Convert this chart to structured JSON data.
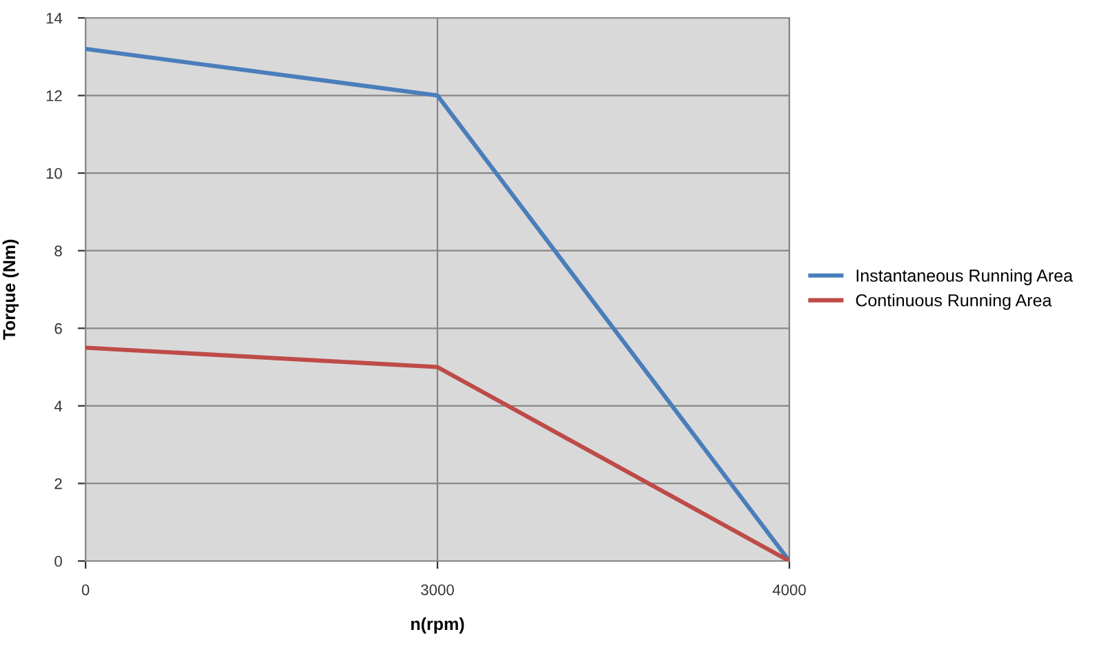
{
  "chart_data": {
    "type": "line",
    "xlabel": "n(rpm)",
    "ylabel": "Torque (Nm)",
    "categories": [
      "0",
      "3000",
      "4000"
    ],
    "series": [
      {
        "name": "Instantaneous Running Area",
        "color": "#4a7ebb",
        "values": [
          13.2,
          12,
          0
        ]
      },
      {
        "name": "Continuous Running Area",
        "color": "#be4b48",
        "values": [
          5.5,
          5,
          0
        ]
      }
    ],
    "ylim": [
      0,
      14
    ],
    "yticks": [
      0,
      2,
      4,
      6,
      8,
      10,
      12,
      14
    ],
    "grid": true,
    "legend": "right",
    "marker": "none",
    "line_style": "solid"
  }
}
